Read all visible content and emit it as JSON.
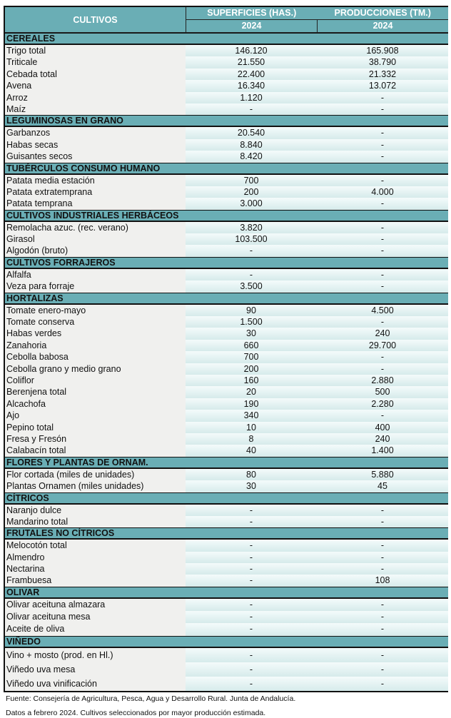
{
  "header": {
    "cultivos": "CULTIVOS",
    "superficies": "SUPERFICIES (HAS.)",
    "producciones": "PRODUCCIONES (TM.)",
    "year_sup": "2024",
    "year_prod": "2024"
  },
  "sections": [
    {
      "title": "CEREALES",
      "rows": [
        [
          "Trigo total",
          "146.120",
          "165.908"
        ],
        [
          "Triticale",
          "21.550",
          "38.790"
        ],
        [
          "Cebada total",
          "22.400",
          "21.332"
        ],
        [
          "Avena",
          "16.340",
          "13.072"
        ],
        [
          "Arroz",
          "1.120",
          "-"
        ],
        [
          "Maíz",
          "-",
          "-"
        ]
      ]
    },
    {
      "title": "LEGUMINOSAS EN GRANO",
      "rows": [
        [
          "Garbanzos",
          "20.540",
          "-"
        ],
        [
          "Habas secas",
          "8.840",
          "-"
        ],
        [
          "Guisantes secos",
          "8.420",
          "-"
        ]
      ]
    },
    {
      "title": "TUBÉRCULOS CONSUMO HUMANO",
      "rows": [
        [
          "Patata media estación",
          "700",
          "-"
        ],
        [
          "Patata extratemprana",
          "200",
          "4.000"
        ],
        [
          "Patata temprana",
          "3.000",
          "-"
        ]
      ]
    },
    {
      "title": "CULTIVOS INDUSTRIALES HERBÁCEOS",
      "rows": [
        [
          "Remolacha azuc. (rec. verano)",
          "3.820",
          "-"
        ],
        [
          "Girasol",
          "103.500",
          "-"
        ],
        [
          "Algodón (bruto)",
          "-",
          "-"
        ]
      ]
    },
    {
      "title": "CULTIVOS FORRAJEROS",
      "rows": [
        [
          "Alfalfa",
          "-",
          "-"
        ],
        [
          "Veza para forraje",
          "3.500",
          "-"
        ]
      ]
    },
    {
      "title": "HORTALIZAS",
      "rows": [
        [
          "Tomate enero-mayo",
          "90",
          "4.500"
        ],
        [
          "Tomate conserva",
          "1.500",
          "-"
        ],
        [
          "Habas verdes",
          "30",
          "240"
        ],
        [
          "Zanahoria",
          "660",
          "29.700"
        ],
        [
          "Cebolla babosa",
          "700",
          "-"
        ],
        [
          "Cebolla grano y medio grano",
          "200",
          "-"
        ],
        [
          "Coliflor",
          "160",
          "2.880"
        ],
        [
          "Berenjena total",
          "20",
          "500"
        ],
        [
          "Alcachofa",
          "190",
          "2.280"
        ],
        [
          "Ajo",
          "340",
          "-"
        ],
        [
          "Pepino total",
          "10",
          "400"
        ],
        [
          "Fresa y Fresón",
          "8",
          "240"
        ],
        [
          "Calabacín total",
          "40",
          "1.400"
        ]
      ]
    },
    {
      "title": "FLORES Y PLANTAS DE ORNAM.",
      "rows": [
        [
          "Flor cortada (miles de unidades)",
          "80",
          "5.880"
        ],
        [
          "Plantas Ornamen (miles unidades)",
          "30",
          "45"
        ]
      ]
    },
    {
      "title": "CÍTRICOS",
      "rows": [
        [
          "Naranjo dulce",
          "-",
          "-"
        ],
        [
          "Mandarino total",
          "-",
          "-"
        ]
      ]
    },
    {
      "title": "FRUTALES NO CÍTRICOS",
      "rows": [
        [
          "Melocotón total",
          "-",
          "-"
        ],
        [
          "Almendro",
          "-",
          "-"
        ],
        [
          "Nectarina",
          "-",
          "-"
        ],
        [
          "Frambuesa",
          "-",
          "108"
        ]
      ]
    },
    {
      "title": "OLIVAR",
      "rows": [
        [
          "Olivar aceituna almazara",
          "-",
          "-"
        ],
        [
          "Olivar aceituna mesa",
          "-",
          "-"
        ],
        [
          "Aceite de oliva",
          "-",
          "-"
        ]
      ]
    },
    {
      "title": "VIÑEDO",
      "rows": [
        [
          "Vino + mosto (prod. en Hl.)",
          "-",
          "-"
        ],
        [
          "Viñedo uva mesa",
          "-",
          "-"
        ],
        [
          "Viñedo uva vinificación",
          "-",
          "-"
        ]
      ]
    }
  ],
  "footer": {
    "source": "Fuente: Consejería de Agricultura, Pesca, Agua y Desarrollo Rural. Junta de Andalucía.",
    "note": "Datos a febrero 2024. Cultivos seleccionados por mayor producción estimada."
  }
}
